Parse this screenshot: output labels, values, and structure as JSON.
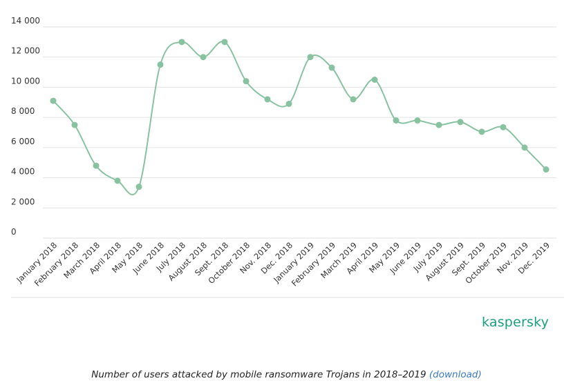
{
  "colors": {
    "line": "#88c2a0",
    "point": "#88c2a0",
    "grid": "#e2e2e2",
    "brand": "#1a9e80",
    "link": "#3a7bc8"
  },
  "brand": {
    "name": "kaspersky"
  },
  "caption": {
    "text": "Number of users attacked by mobile ransomware Trojans in 2018–2019",
    "link_text": "(download)"
  },
  "chart_data": {
    "type": "line",
    "title": "",
    "xlabel": "",
    "ylabel": "",
    "ylim": [
      0,
      14000
    ],
    "yticks": [
      0,
      2000,
      4000,
      6000,
      8000,
      10000,
      12000,
      14000
    ],
    "ytick_labels": [
      "0",
      "2 000",
      "4 000",
      "6 000",
      "8 000",
      "10 000",
      "12 000",
      "14 000"
    ],
    "grid": true,
    "legend": "none",
    "categories": [
      "January 2018",
      "February 2018",
      "March 2018",
      "April 2018",
      "May 2018",
      "June 2018",
      "July 2018",
      "August 2018",
      "Sept. 2018",
      "October 2018",
      "Nov. 2018",
      "Dec. 2018",
      "January 2019",
      "February 2019",
      "March 2019",
      "April 2019",
      "May 2019",
      "June 2019",
      "July 2019",
      "August 2019",
      "Sept. 2019",
      "October 2019",
      "Nov. 2019",
      "Dec. 2019"
    ],
    "series": [
      {
        "values": [
          9100,
          7500,
          4800,
          3800,
          3400,
          11500,
          13000,
          12000,
          13000,
          10400,
          9200,
          8900,
          12000,
          11300,
          9200,
          10500,
          7800,
          7800,
          7500,
          7700,
          7050,
          7350,
          6000,
          4550
        ]
      }
    ]
  }
}
